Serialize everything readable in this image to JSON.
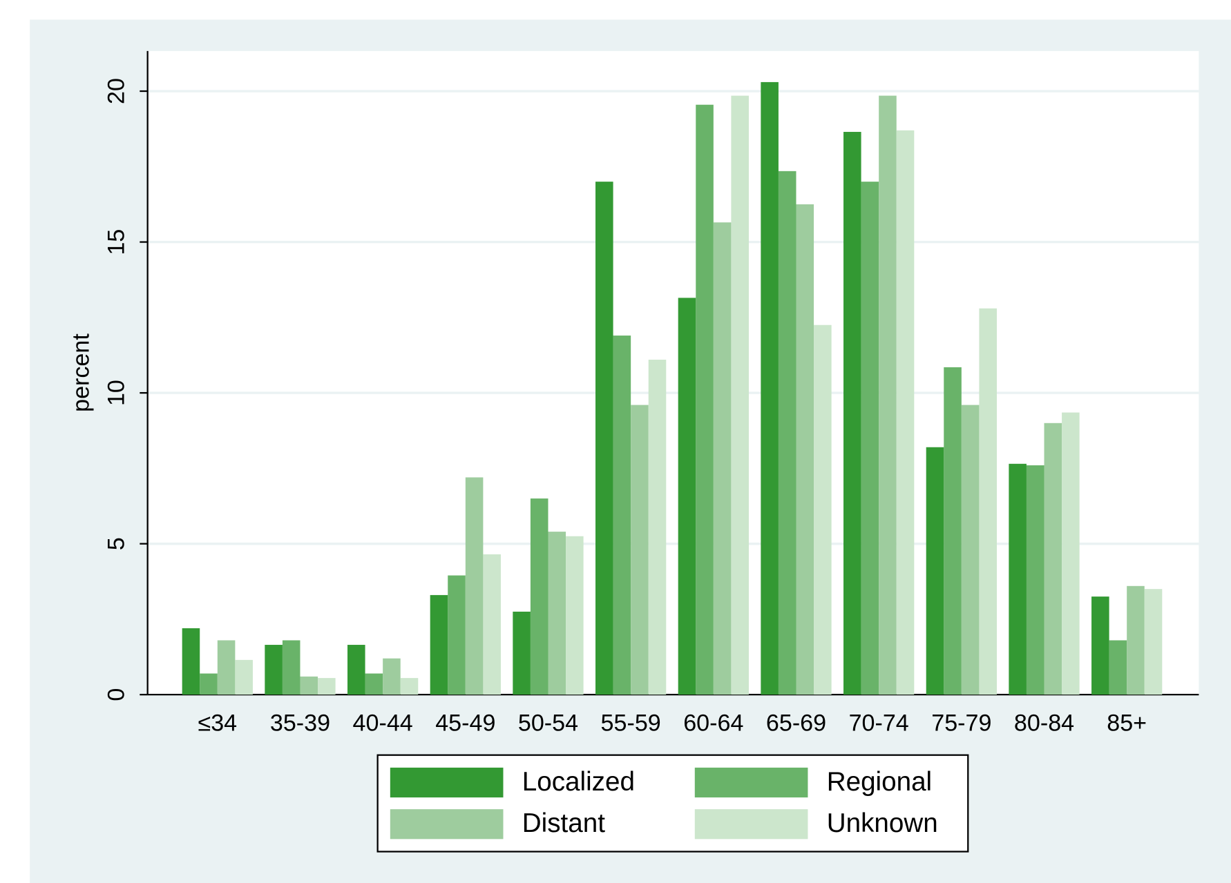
{
  "chart_data": {
    "type": "bar",
    "y_label": "percent",
    "categories": [
      "≤34",
      "35-39",
      "40-44",
      "45-49",
      "50-54",
      "55-59",
      "60-64",
      "65-69",
      "70-74",
      "75-79",
      "80-84",
      "85+"
    ],
    "series": [
      {
        "name": "Localized",
        "color": "#339933",
        "values": [
          2.2,
          1.65,
          1.65,
          3.3,
          2.75,
          17.0,
          13.15,
          20.3,
          18.65,
          8.2,
          7.65,
          3.25
        ]
      },
      {
        "name": "Regional",
        "color": "#69b369",
        "values": [
          0.7,
          1.8,
          0.7,
          3.95,
          6.5,
          11.9,
          19.55,
          17.35,
          17.0,
          10.85,
          7.6,
          1.8
        ]
      },
      {
        "name": "Distant",
        "color": "#9ecc9e",
        "values": [
          1.8,
          0.6,
          1.2,
          7.2,
          5.4,
          9.6,
          15.65,
          16.25,
          19.85,
          9.6,
          9.0,
          3.6
        ]
      },
      {
        "name": "Unknown",
        "color": "#cce6cc",
        "values": [
          1.15,
          0.55,
          0.55,
          4.65,
          5.25,
          11.1,
          19.85,
          12.25,
          18.7,
          12.8,
          9.35,
          3.5
        ]
      }
    ],
    "ylim": [
      0,
      21.33
    ],
    "yticks": [
      0,
      5,
      10,
      15,
      20
    ],
    "grid": true,
    "legend": "bottom"
  }
}
